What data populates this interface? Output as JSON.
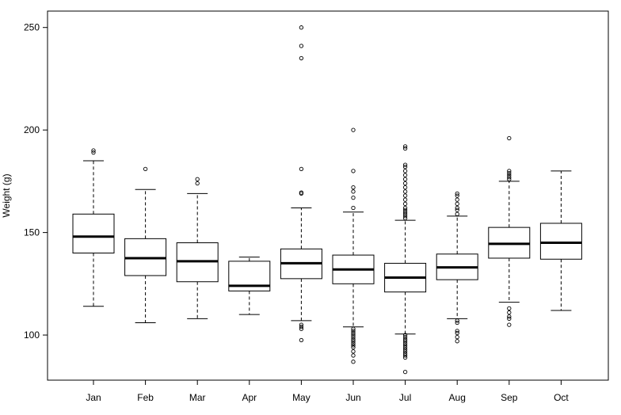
{
  "chart_data": {
    "type": "boxplot",
    "title": "",
    "xlabel": "",
    "ylabel": "Weight (g)",
    "ylim": [
      78,
      258
    ],
    "yticks": [
      100,
      150,
      200,
      250
    ],
    "categories": [
      "Jan",
      "Feb",
      "Mar",
      "Apr",
      "May",
      "Jun",
      "Jul",
      "Aug",
      "Sep",
      "Oct"
    ],
    "boxes": [
      {
        "label": "Jan",
        "whisker_low": 114,
        "q1": 140,
        "median": 148,
        "q3": 159,
        "whisker_high": 185,
        "outliers": [
          189,
          190
        ]
      },
      {
        "label": "Feb",
        "whisker_low": 106,
        "q1": 129,
        "median": 137.5,
        "q3": 147,
        "whisker_high": 171,
        "outliers": [
          181
        ]
      },
      {
        "label": "Mar",
        "whisker_low": 108,
        "q1": 126,
        "median": 136,
        "q3": 145,
        "whisker_high": 169,
        "outliers": [
          174,
          176
        ]
      },
      {
        "label": "Apr",
        "whisker_low": 110,
        "q1": 121.5,
        "median": 124,
        "q3": 136,
        "whisker_high": 138,
        "outliers": []
      },
      {
        "label": "May",
        "whisker_low": 107,
        "q1": 127.5,
        "median": 135,
        "q3": 142,
        "whisker_high": 162,
        "outliers": [
          97.5,
          103,
          104,
          105,
          169,
          169.5,
          181,
          235,
          241,
          250
        ]
      },
      {
        "label": "Jun",
        "whisker_low": 104,
        "q1": 125,
        "median": 132,
        "q3": 139,
        "whisker_high": 160,
        "outliers": [
          87,
          90,
          92,
          94,
          95,
          96,
          97,
          98,
          99,
          100,
          101,
          102,
          103,
          162,
          167,
          170,
          172,
          180,
          200
        ]
      },
      {
        "label": "Jul",
        "whisker_low": 100.5,
        "q1": 121,
        "median": 128,
        "q3": 135,
        "whisker_high": 156,
        "outliers": [
          82,
          89,
          90,
          91,
          92,
          93,
          94,
          95,
          96,
          97,
          98,
          99,
          100,
          157,
          158,
          159,
          160,
          161,
          162,
          164,
          166,
          168,
          170,
          172,
          174,
          176,
          178,
          180,
          182,
          183,
          191,
          192
        ]
      },
      {
        "label": "Aug",
        "whisker_low": 108,
        "q1": 127,
        "median": 133,
        "q3": 139.5,
        "whisker_high": 158,
        "outliers": [
          97,
          99,
          101,
          102,
          106,
          107,
          159,
          161,
          162,
          164,
          166,
          168,
          169
        ]
      },
      {
        "label": "Sep",
        "whisker_low": 116,
        "q1": 137.5,
        "median": 144.5,
        "q3": 152.5,
        "whisker_high": 175,
        "outliers": [
          105,
          108,
          109,
          111,
          113,
          176,
          177,
          178,
          179,
          180,
          196
        ]
      },
      {
        "label": "Oct",
        "whisker_low": 112,
        "q1": 137,
        "median": 145,
        "q3": 154.5,
        "whisker_high": 180,
        "outliers": []
      }
    ]
  }
}
